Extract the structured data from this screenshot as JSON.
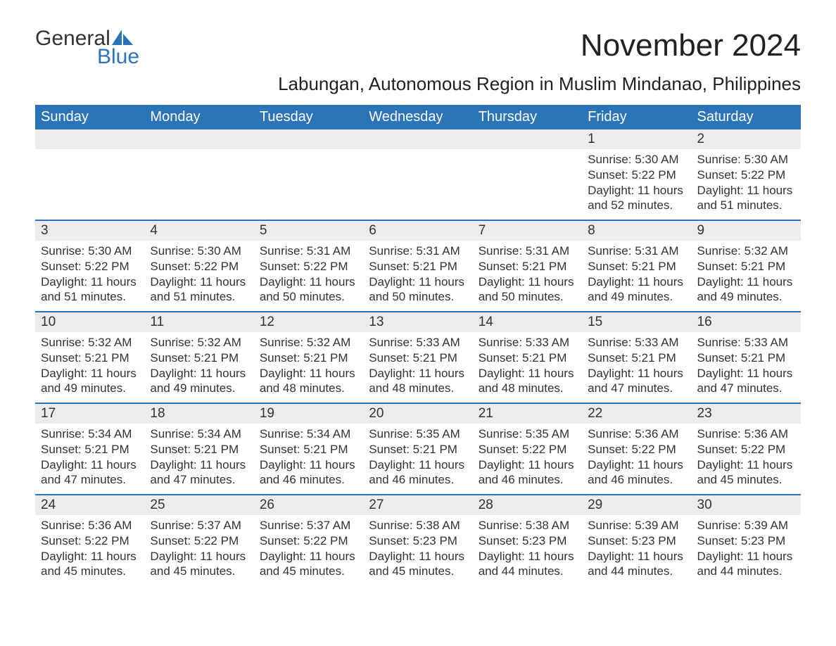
{
  "logo": {
    "word1": "General",
    "word2": "Blue",
    "accent_color": "#2b74b8"
  },
  "title": "November 2024",
  "location": "Labungan, Autonomous Region in Muslim Mindanao, Philippines",
  "colors": {
    "header_bg": "#2b74b8",
    "header_fg": "#ffffff",
    "daynum_bg": "#ececec",
    "text": "#333333",
    "rule": "#2b74b8",
    "page_bg": "#ffffff"
  },
  "font": {
    "family": "Arial",
    "title_size_pt": 33,
    "location_size_pt": 20,
    "header_size_pt": 15,
    "body_size_pt": 13
  },
  "weekdays": [
    "Sunday",
    "Monday",
    "Tuesday",
    "Wednesday",
    "Thursday",
    "Friday",
    "Saturday"
  ],
  "weeks": [
    [
      null,
      null,
      null,
      null,
      null,
      {
        "n": "1",
        "sunrise": "Sunrise: 5:30 AM",
        "sunset": "Sunset: 5:22 PM",
        "daylight": "Daylight: 11 hours and 52 minutes."
      },
      {
        "n": "2",
        "sunrise": "Sunrise: 5:30 AM",
        "sunset": "Sunset: 5:22 PM",
        "daylight": "Daylight: 11 hours and 51 minutes."
      }
    ],
    [
      {
        "n": "3",
        "sunrise": "Sunrise: 5:30 AM",
        "sunset": "Sunset: 5:22 PM",
        "daylight": "Daylight: 11 hours and 51 minutes."
      },
      {
        "n": "4",
        "sunrise": "Sunrise: 5:30 AM",
        "sunset": "Sunset: 5:22 PM",
        "daylight": "Daylight: 11 hours and 51 minutes."
      },
      {
        "n": "5",
        "sunrise": "Sunrise: 5:31 AM",
        "sunset": "Sunset: 5:22 PM",
        "daylight": "Daylight: 11 hours and 50 minutes."
      },
      {
        "n": "6",
        "sunrise": "Sunrise: 5:31 AM",
        "sunset": "Sunset: 5:21 PM",
        "daylight": "Daylight: 11 hours and 50 minutes."
      },
      {
        "n": "7",
        "sunrise": "Sunrise: 5:31 AM",
        "sunset": "Sunset: 5:21 PM",
        "daylight": "Daylight: 11 hours and 50 minutes."
      },
      {
        "n": "8",
        "sunrise": "Sunrise: 5:31 AM",
        "sunset": "Sunset: 5:21 PM",
        "daylight": "Daylight: 11 hours and 49 minutes."
      },
      {
        "n": "9",
        "sunrise": "Sunrise: 5:32 AM",
        "sunset": "Sunset: 5:21 PM",
        "daylight": "Daylight: 11 hours and 49 minutes."
      }
    ],
    [
      {
        "n": "10",
        "sunrise": "Sunrise: 5:32 AM",
        "sunset": "Sunset: 5:21 PM",
        "daylight": "Daylight: 11 hours and 49 minutes."
      },
      {
        "n": "11",
        "sunrise": "Sunrise: 5:32 AM",
        "sunset": "Sunset: 5:21 PM",
        "daylight": "Daylight: 11 hours and 49 minutes."
      },
      {
        "n": "12",
        "sunrise": "Sunrise: 5:32 AM",
        "sunset": "Sunset: 5:21 PM",
        "daylight": "Daylight: 11 hours and 48 minutes."
      },
      {
        "n": "13",
        "sunrise": "Sunrise: 5:33 AM",
        "sunset": "Sunset: 5:21 PM",
        "daylight": "Daylight: 11 hours and 48 minutes."
      },
      {
        "n": "14",
        "sunrise": "Sunrise: 5:33 AM",
        "sunset": "Sunset: 5:21 PM",
        "daylight": "Daylight: 11 hours and 48 minutes."
      },
      {
        "n": "15",
        "sunrise": "Sunrise: 5:33 AM",
        "sunset": "Sunset: 5:21 PM",
        "daylight": "Daylight: 11 hours and 47 minutes."
      },
      {
        "n": "16",
        "sunrise": "Sunrise: 5:33 AM",
        "sunset": "Sunset: 5:21 PM",
        "daylight": "Daylight: 11 hours and 47 minutes."
      }
    ],
    [
      {
        "n": "17",
        "sunrise": "Sunrise: 5:34 AM",
        "sunset": "Sunset: 5:21 PM",
        "daylight": "Daylight: 11 hours and 47 minutes."
      },
      {
        "n": "18",
        "sunrise": "Sunrise: 5:34 AM",
        "sunset": "Sunset: 5:21 PM",
        "daylight": "Daylight: 11 hours and 47 minutes."
      },
      {
        "n": "19",
        "sunrise": "Sunrise: 5:34 AM",
        "sunset": "Sunset: 5:21 PM",
        "daylight": "Daylight: 11 hours and 46 minutes."
      },
      {
        "n": "20",
        "sunrise": "Sunrise: 5:35 AM",
        "sunset": "Sunset: 5:21 PM",
        "daylight": "Daylight: 11 hours and 46 minutes."
      },
      {
        "n": "21",
        "sunrise": "Sunrise: 5:35 AM",
        "sunset": "Sunset: 5:22 PM",
        "daylight": "Daylight: 11 hours and 46 minutes."
      },
      {
        "n": "22",
        "sunrise": "Sunrise: 5:36 AM",
        "sunset": "Sunset: 5:22 PM",
        "daylight": "Daylight: 11 hours and 46 minutes."
      },
      {
        "n": "23",
        "sunrise": "Sunrise: 5:36 AM",
        "sunset": "Sunset: 5:22 PM",
        "daylight": "Daylight: 11 hours and 45 minutes."
      }
    ],
    [
      {
        "n": "24",
        "sunrise": "Sunrise: 5:36 AM",
        "sunset": "Sunset: 5:22 PM",
        "daylight": "Daylight: 11 hours and 45 minutes."
      },
      {
        "n": "25",
        "sunrise": "Sunrise: 5:37 AM",
        "sunset": "Sunset: 5:22 PM",
        "daylight": "Daylight: 11 hours and 45 minutes."
      },
      {
        "n": "26",
        "sunrise": "Sunrise: 5:37 AM",
        "sunset": "Sunset: 5:22 PM",
        "daylight": "Daylight: 11 hours and 45 minutes."
      },
      {
        "n": "27",
        "sunrise": "Sunrise: 5:38 AM",
        "sunset": "Sunset: 5:23 PM",
        "daylight": "Daylight: 11 hours and 45 minutes."
      },
      {
        "n": "28",
        "sunrise": "Sunrise: 5:38 AM",
        "sunset": "Sunset: 5:23 PM",
        "daylight": "Daylight: 11 hours and 44 minutes."
      },
      {
        "n": "29",
        "sunrise": "Sunrise: 5:39 AM",
        "sunset": "Sunset: 5:23 PM",
        "daylight": "Daylight: 11 hours and 44 minutes."
      },
      {
        "n": "30",
        "sunrise": "Sunrise: 5:39 AM",
        "sunset": "Sunset: 5:23 PM",
        "daylight": "Daylight: 11 hours and 44 minutes."
      }
    ]
  ]
}
